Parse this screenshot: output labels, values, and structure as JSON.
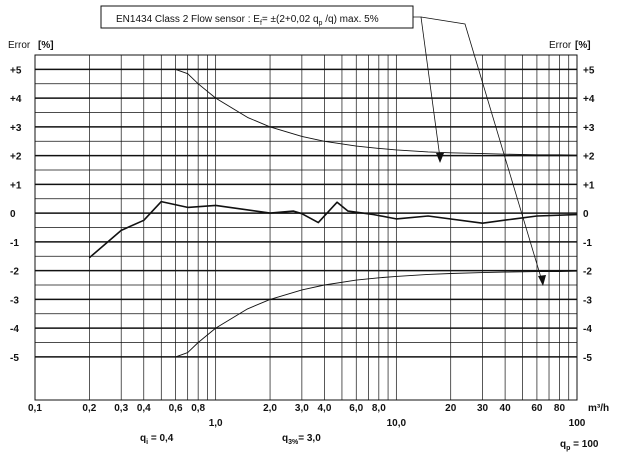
{
  "chart_data": {
    "type": "line",
    "x_scale": "log",
    "xlim": [
      0.1,
      100
    ],
    "ylim": [
      -6.5,
      5.5
    ],
    "x_unit": "m³/h",
    "x_ticks": [
      {
        "v": 0.1,
        "label": "0,1"
      },
      {
        "v": 0.2,
        "label": "0,2"
      },
      {
        "v": 0.3,
        "label": "0,3"
      },
      {
        "v": 0.4,
        "label": "0,4"
      },
      {
        "v": 0.6,
        "label": "0,6"
      },
      {
        "v": 0.8,
        "label": "0,8"
      },
      {
        "v": 1.0,
        "label": "1,0"
      },
      {
        "v": 2.0,
        "label": "2,0"
      },
      {
        "v": 3.0,
        "label": "3,0"
      },
      {
        "v": 4.0,
        "label": "4,0"
      },
      {
        "v": 6.0,
        "label": "6,0"
      },
      {
        "v": 8.0,
        "label": "8,0"
      },
      {
        "v": 10.0,
        "label": "10,0"
      },
      {
        "v": 20,
        "label": "20"
      },
      {
        "v": 30,
        "label": "30"
      },
      {
        "v": 40,
        "label": "40"
      },
      {
        "v": 60,
        "label": "60"
      },
      {
        "v": 80,
        "label": "80"
      },
      {
        "v": 100,
        "label": "100"
      }
    ],
    "y_ticks": [
      {
        "v": 5,
        "label": "+5"
      },
      {
        "v": 4,
        "label": "+4"
      },
      {
        "v": 3,
        "label": "+3"
      },
      {
        "v": 2,
        "label": "+2"
      },
      {
        "v": 1,
        "label": "+1"
      },
      {
        "v": 0,
        "label": "0"
      },
      {
        "v": -1,
        "label": "-1"
      },
      {
        "v": -2,
        "label": "-2"
      },
      {
        "v": -3,
        "label": "-3"
      },
      {
        "v": -4,
        "label": "-4"
      },
      {
        "v": -5,
        "label": "-5"
      }
    ],
    "y_halflines": [
      4.5,
      3.5,
      2.5,
      1.5,
      0.5,
      -0.5,
      -1.5,
      -2.5,
      -3.5,
      -4.5
    ],
    "ylabel_left": "Error",
    "ylabel_right": "Error",
    "ylabel_unit": "[%]",
    "annotation": {
      "prefix": "EN1434 Class 2 Flow sensor : ",
      "E": "E",
      "E_sub": "f",
      "formula_a": "= ±(2+0,02 q",
      "formula_sub": "p",
      "formula_b": " /q) max. 5%"
    },
    "series": [
      {
        "role": "upper-limit",
        "x": [
          0.6,
          0.6,
          0.7,
          0.8,
          1.0,
          1.5,
          2.0,
          3.0,
          4.0,
          6.0,
          8.0,
          10.0,
          15.0,
          20.0,
          30.0,
          40.0,
          60.0,
          80.0,
          100.0
        ],
        "y": [
          5.0,
          5.0,
          4.85,
          4.5,
          4.0,
          3.33,
          3.0,
          2.67,
          2.5,
          2.33,
          2.25,
          2.2,
          2.13,
          2.1,
          2.07,
          2.05,
          2.03,
          2.03,
          2.02
        ]
      },
      {
        "role": "lower-limit",
        "x": [
          0.6,
          0.6,
          0.7,
          0.8,
          1.0,
          1.5,
          2.0,
          3.0,
          4.0,
          6.0,
          8.0,
          10.0,
          15.0,
          20.0,
          30.0,
          40.0,
          60.0,
          80.0,
          100.0
        ],
        "y": [
          -5.0,
          -5.0,
          -4.85,
          -4.5,
          -4.0,
          -3.33,
          -3.0,
          -2.67,
          -2.5,
          -2.33,
          -2.25,
          -2.2,
          -2.13,
          -2.1,
          -2.07,
          -2.05,
          -2.03,
          -2.03,
          -2.02
        ]
      },
      {
        "role": "measured",
        "x": [
          0.2,
          0.3,
          0.4,
          0.5,
          0.7,
          1.0,
          2.0,
          2.7,
          3.0,
          3.7,
          4.7,
          5.4,
          7.5,
          10.0,
          15.0,
          30.0,
          45.0,
          60.0,
          100.0
        ],
        "y": [
          -1.55,
          -0.6,
          -0.25,
          0.4,
          0.2,
          0.27,
          0.0,
          0.07,
          -0.02,
          -0.33,
          0.38,
          0.07,
          -0.05,
          -0.2,
          -0.1,
          -0.35,
          -0.2,
          -0.1,
          -0.05
        ]
      }
    ],
    "q_markers": [
      {
        "q": "q",
        "sub": "i",
        "value": " = 0,4",
        "x": 0.4
      },
      {
        "q": "q",
        "sub": "3%",
        "value": "= 3,0",
        "x": 3.0
      },
      {
        "q": "q",
        "sub": "p",
        "value": " = 100",
        "x": 100
      }
    ]
  }
}
